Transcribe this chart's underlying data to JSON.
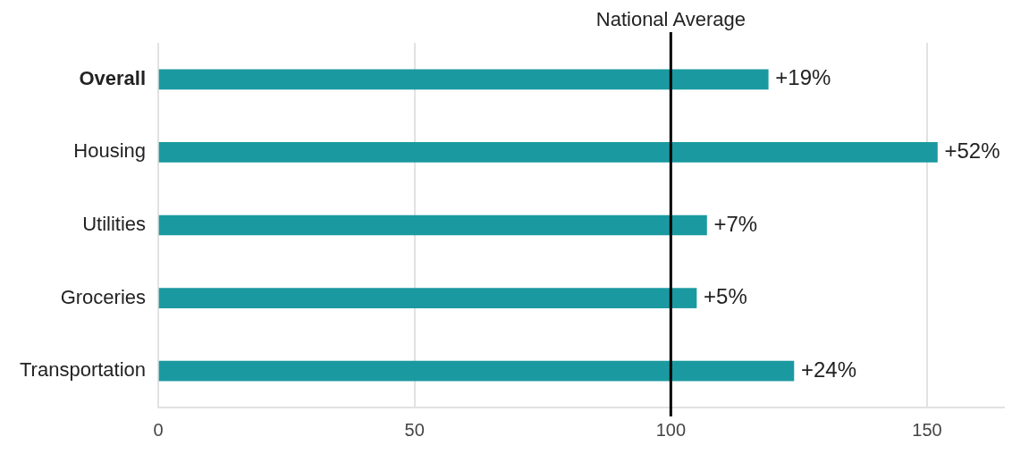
{
  "chart_data": {
    "type": "bar",
    "orientation": "horizontal",
    "stacked": true,
    "categories": [
      "Overall",
      "Housing",
      "Utilities",
      "Groceries",
      "Transportation"
    ],
    "series": [
      {
        "color": "#1a9aa0",
        "values": [
          100,
          100,
          100,
          100,
          100
        ]
      },
      {
        "color": "#1a9aa0",
        "values": [
          19,
          52,
          7,
          5,
          24
        ],
        "value_labels": [
          "+19%",
          "+52%",
          "+7%",
          "+5%",
          "+24%"
        ]
      }
    ],
    "xlim": [
      0,
      165
    ],
    "xticks": [
      0,
      50,
      100,
      150
    ],
    "grid": "x",
    "legend": false,
    "ref_lines": [
      {
        "axis": "x",
        "value": 100,
        "label": "National Average",
        "color": "#000000"
      }
    ]
  }
}
